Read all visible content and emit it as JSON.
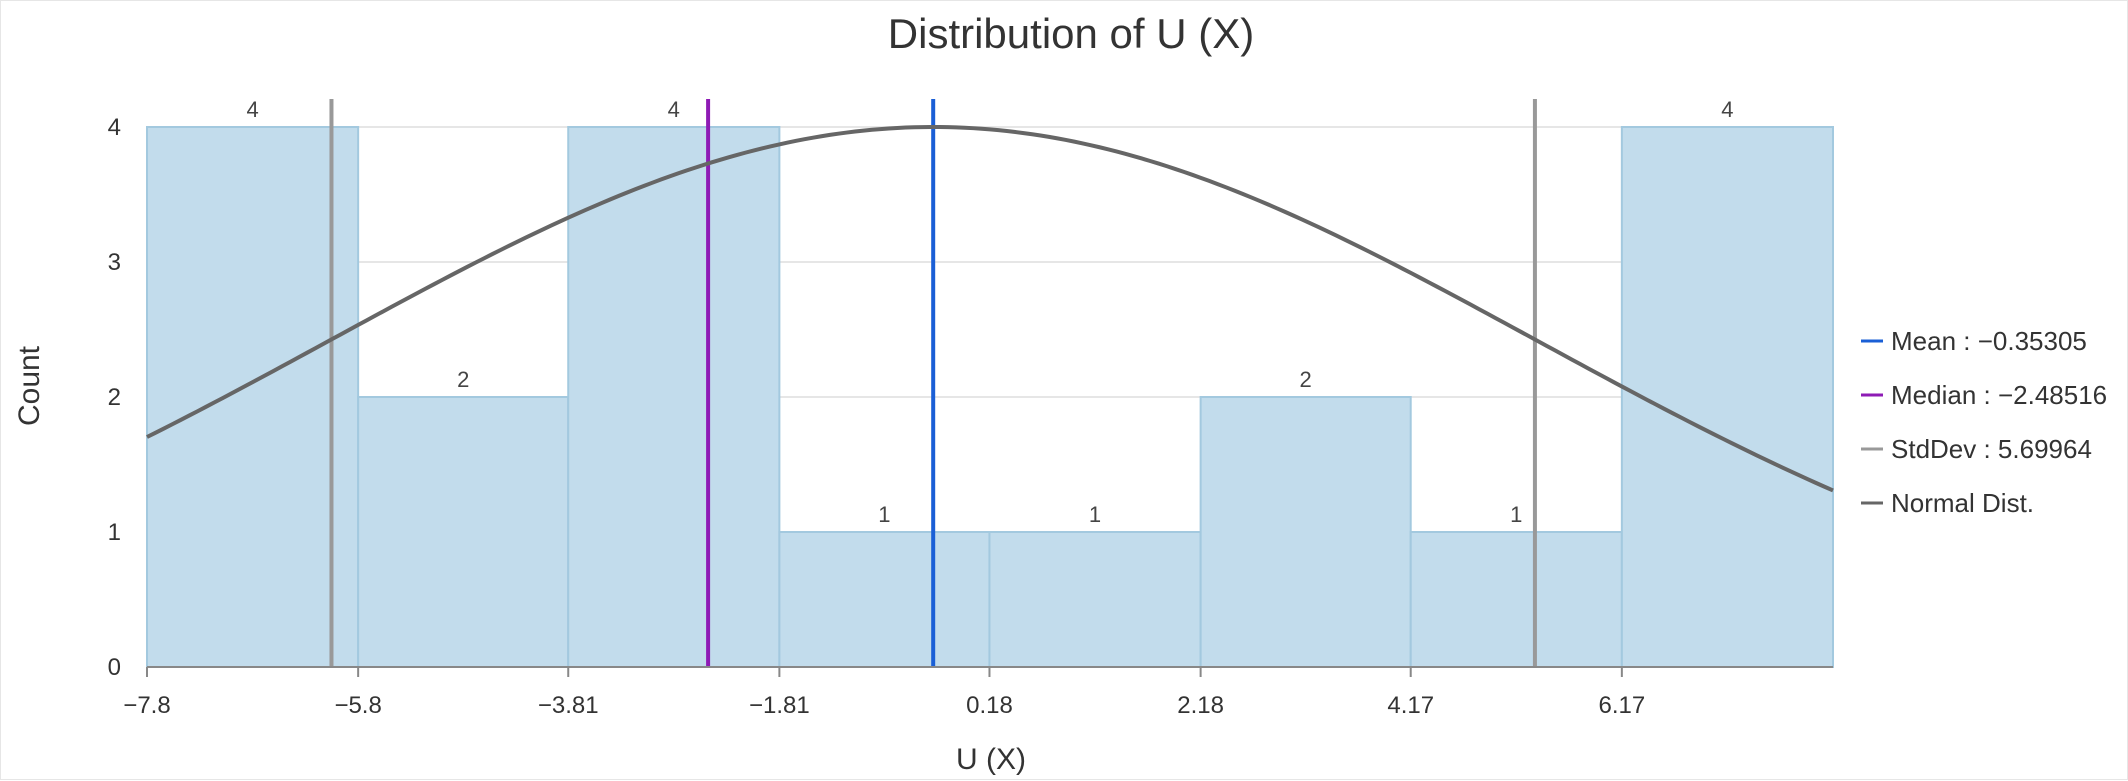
{
  "chart_data": {
    "type": "bar",
    "title": "Distribution of U (X)",
    "xlabel": "U (X)",
    "ylabel": "Count",
    "ylim": [
      0,
      4
    ],
    "xlim": [
      -7.8,
      8.17
    ],
    "y_ticks": [
      0,
      1,
      2,
      3,
      4
    ],
    "x_ticks": [
      -7.8,
      -5.8,
      -3.81,
      -1.81,
      0.18,
      2.18,
      4.17,
      6.17
    ],
    "x_tick_labels": [
      "−7.8",
      "−5.8",
      "−3.81",
      "−1.81",
      "0.18",
      "2.18",
      "4.17",
      "6.17"
    ],
    "bin_edges": [
      -7.8,
      -5.8,
      -3.81,
      -1.81,
      0.18,
      2.18,
      4.17,
      6.17,
      8.17
    ],
    "values": [
      4,
      2,
      4,
      1,
      1,
      2,
      1,
      4
    ],
    "bar_labels": [
      "4",
      "2",
      "4",
      "1",
      "1",
      "2",
      "1",
      "4"
    ],
    "grid": true,
    "legend_position": "right",
    "reference_lines": [
      {
        "name": "Mean",
        "value": -0.35305,
        "color": "#1a5fd6"
      },
      {
        "name": "Median",
        "value": -2.48516,
        "color": "#8e1bb5"
      },
      {
        "name": "StdDev",
        "value": 5.69964,
        "color": "#999999",
        "lines_at": [
          -6.05269,
          5.34659
        ]
      }
    ],
    "normal_curve": {
      "name": "Normal Dist.",
      "mean": -0.35305,
      "stddev": 5.69964,
      "peak": 4,
      "color": "#666666"
    },
    "legend": [
      {
        "label": "Mean : −0.35305",
        "color": "#1a5fd6"
      },
      {
        "label": "Median : −2.48516",
        "color": "#8e1bb5"
      },
      {
        "label": "StdDev : 5.69964",
        "color": "#999999"
      },
      {
        "label": "Normal Dist.",
        "color": "#666666"
      }
    ],
    "bar_fill": "#c2dcec",
    "bar_stroke": "#a3c9df"
  }
}
